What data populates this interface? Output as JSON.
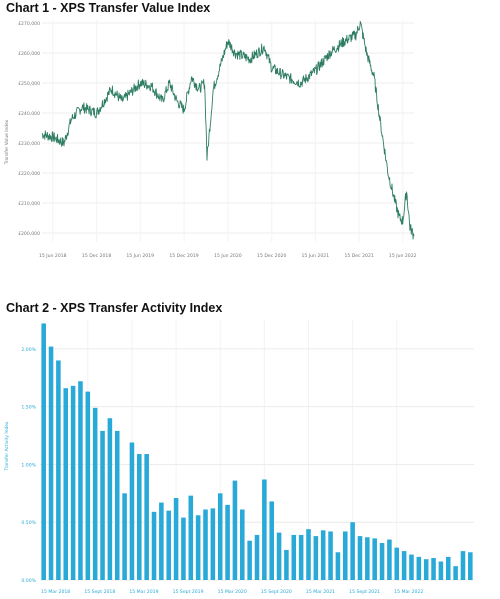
{
  "chart_data": [
    {
      "type": "line",
      "title": "Chart 1 - XPS Transfer Value Index",
      "ylabel": "Transfer Value Index",
      "yticks": [
        "£200,000",
        "£210,000",
        "£220,000",
        "£230,000",
        "£240,000",
        "£250,000",
        "£260,000",
        "£270,000"
      ],
      "yticks_values": [
        200000,
        210000,
        220000,
        230000,
        240000,
        250000,
        260000,
        270000
      ],
      "xticks": [
        "15 Jun 2018",
        "15 Dec 2018",
        "15 Jun 2019",
        "15 Dec 2019",
        "15 Jun 2020",
        "15 Dec 2020",
        "15 Jun 2021",
        "15 Dec 2021",
        "15 Jun 2022"
      ],
      "ylim": [
        197000,
        271000
      ],
      "grid": true,
      "color": "#2e7d63",
      "series": [
        {
          "x": [
            "2018-05-01",
            "2018-06-15",
            "2018-08-01",
            "2018-09-01",
            "2018-10-15",
            "2018-12-15",
            "2019-02-15",
            "2019-04-01",
            "2019-06-15",
            "2019-08-01",
            "2019-09-15",
            "2019-10-15",
            "2019-11-15",
            "2019-12-15",
            "2020-01-15",
            "2020-02-15",
            "2020-03-10",
            "2020-03-20",
            "2020-04-15",
            "2020-06-15",
            "2020-07-15",
            "2020-09-15",
            "2020-11-15",
            "2020-12-15",
            "2021-02-15",
            "2021-04-15",
            "2021-06-15",
            "2021-08-15",
            "2021-10-15",
            "2021-12-01",
            "2021-12-20",
            "2022-01-15",
            "2022-02-15",
            "2022-03-15",
            "2022-04-15",
            "2022-05-15",
            "2022-06-01",
            "2022-06-15",
            "2022-07-01",
            "2022-07-15",
            "2022-08-01"
          ],
          "values": [
            233000,
            232000,
            230000,
            238000,
            242000,
            240000,
            248000,
            244000,
            250000,
            249000,
            244000,
            250000,
            244000,
            241000,
            252000,
            248000,
            250000,
            225000,
            248000,
            264000,
            260000,
            258000,
            262000,
            255000,
            252000,
            250000,
            254000,
            260000,
            264000,
            266000,
            270000,
            260000,
            252000,
            236000,
            220000,
            210000,
            205000,
            204000,
            214000,
            202000,
            199000
          ]
        }
      ]
    },
    {
      "type": "bar",
      "title": "Chart 2 - XPS Transfer Activity Index",
      "ylabel": "Transfer Activity Index",
      "yticks": [
        "0.00%",
        "0.50%",
        "1.00%",
        "1.50%",
        "2.00%"
      ],
      "yticks_values": [
        0,
        0.5,
        1.0,
        1.5,
        2.0
      ],
      "xticks": [
        "15 Mar 2018",
        "15 Sept 2018",
        "15 Mar 2019",
        "15 Sept 2019",
        "15 Mar 2020",
        "15 Sept 2020",
        "15 Mar 2021",
        "15 Sept 2021",
        "15 Mar 2022"
      ],
      "ylim": [
        0,
        2.25
      ],
      "grid": true,
      "color": "#29a9d8",
      "values": [
        2.22,
        2.02,
        1.9,
        1.66,
        1.68,
        1.72,
        1.63,
        1.49,
        1.29,
        1.4,
        1.29,
        0.75,
        1.19,
        1.09,
        1.09,
        0.59,
        0.67,
        0.6,
        0.71,
        0.54,
        0.73,
        0.56,
        0.61,
        0.62,
        0.75,
        0.65,
        0.86,
        0.61,
        0.34,
        0.39,
        0.87,
        0.68,
        0.41,
        0.26,
        0.39,
        0.39,
        0.44,
        0.38,
        0.43,
        0.42,
        0.24,
        0.42,
        0.5,
        0.38,
        0.37,
        0.36,
        0.32,
        0.35,
        0.28,
        0.25,
        0.22,
        0.2,
        0.18,
        0.19,
        0.16,
        0.2,
        0.12,
        0.25,
        0.24
      ]
    }
  ]
}
